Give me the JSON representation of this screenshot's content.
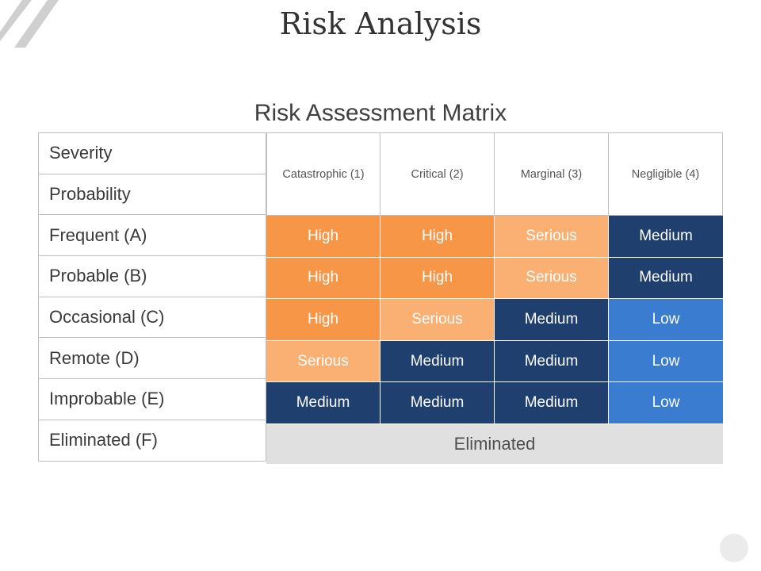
{
  "title": "Risk Analysis",
  "matrix": {
    "title": "Risk Assessment Matrix",
    "severity_label": "Severity",
    "probability_label": "Probability",
    "severity_levels": [
      "Catastrophic (1)",
      "Critical (2)",
      "Marginal (3)",
      "Negligible (4)"
    ],
    "rows": [
      {
        "label": "Frequent (A)",
        "cells": [
          "High",
          "High",
          "Serious",
          "Medium"
        ]
      },
      {
        "label": "Probable (B)",
        "cells": [
          "High",
          "High",
          "Serious",
          "Medium"
        ]
      },
      {
        "label": "Occasional (C)",
        "cells": [
          "High",
          "Serious",
          "Medium",
          "Low"
        ]
      },
      {
        "label": "Remote (D)",
        "cells": [
          "Serious",
          "Medium",
          "Medium",
          "Low"
        ]
      },
      {
        "label": "Improbable (E)",
        "cells": [
          "Medium",
          "Medium",
          "Medium",
          "Low"
        ]
      }
    ],
    "eliminated_row": {
      "label": "Eliminated (F)",
      "value": "Eliminated"
    }
  },
  "colors": {
    "High": "#f79646",
    "Serious": "#fab073",
    "Medium": "#1f3f6e",
    "Low": "#3a7ccf",
    "Eliminated": "#e0e0e0"
  }
}
